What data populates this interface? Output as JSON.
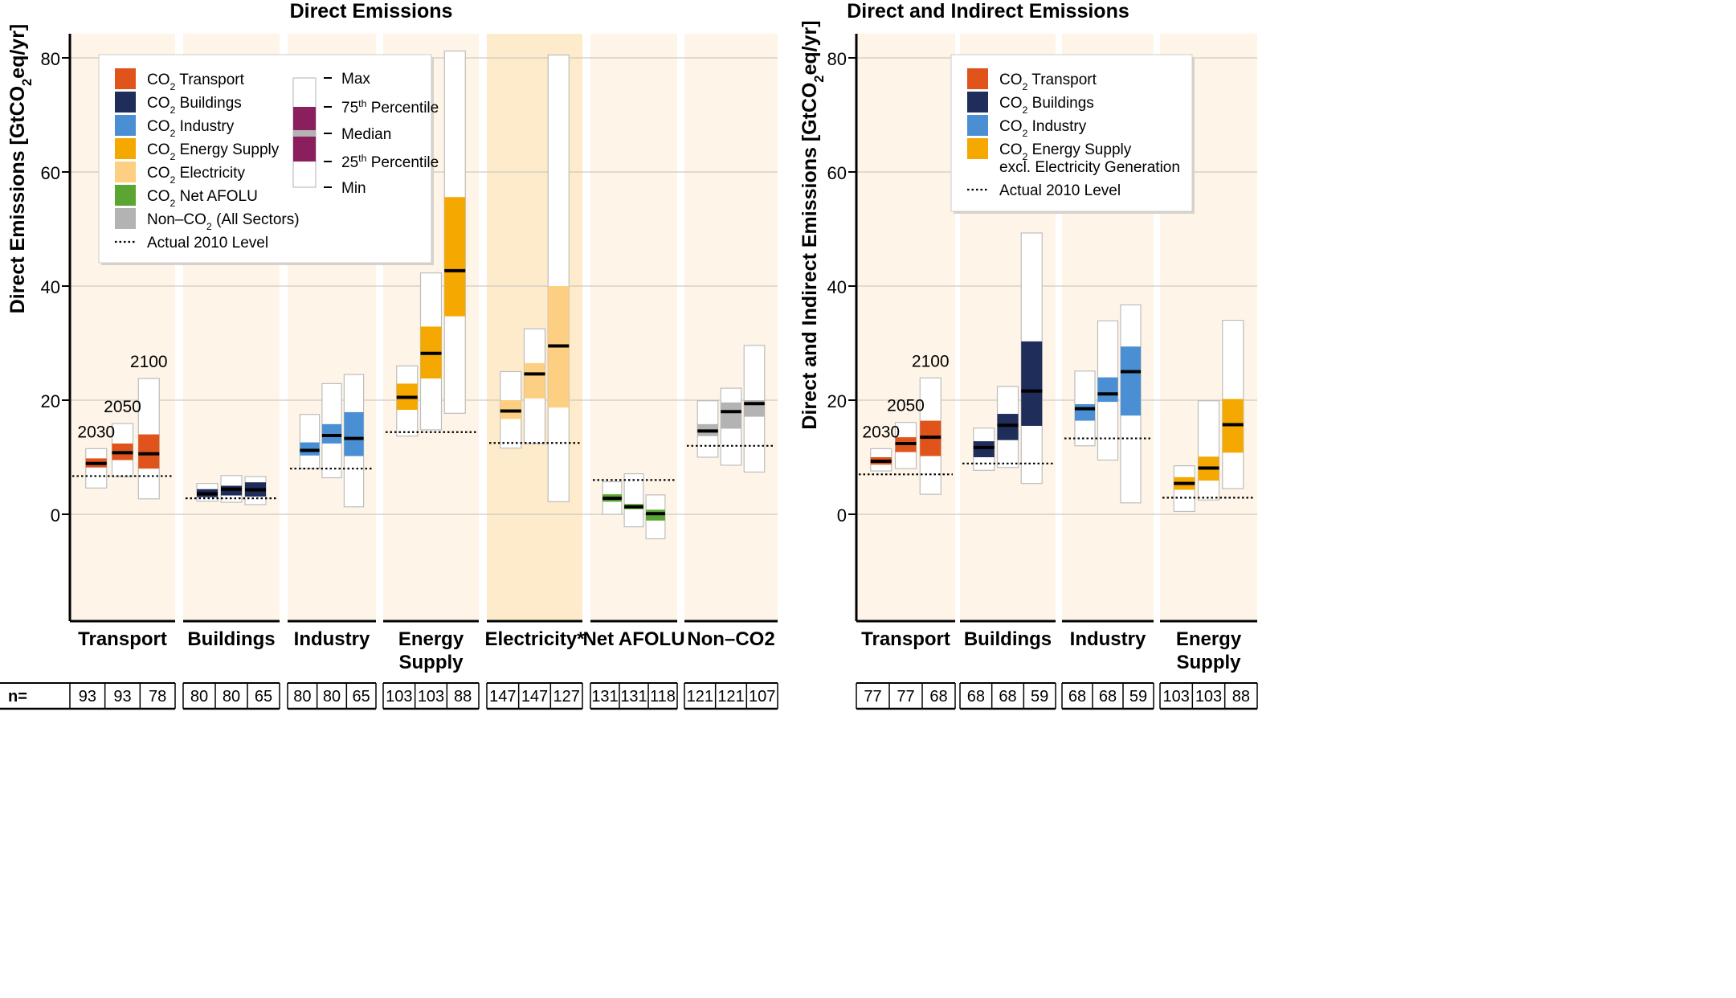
{
  "chart_data": [
    {
      "type": "box",
      "title": "Direct Emissions",
      "ylabel": "Direct Emissions [GtCO2eq/yr]",
      "ylim": [
        -18,
        85
      ],
      "yticks": [
        0,
        20,
        40,
        60,
        80
      ],
      "grid": true,
      "years": [
        "2030",
        "2050",
        "2100"
      ],
      "n_label": "n=",
      "legend": {
        "placement": "top-left",
        "items": [
          {
            "label": "CO2 Transport",
            "color": "#e0541b"
          },
          {
            "label": "CO2 Buildings",
            "color": "#1e2d5a"
          },
          {
            "label": "CO2 Industry",
            "color": "#4a8fd4"
          },
          {
            "label": "CO2 Energy Supply",
            "color": "#f5a800"
          },
          {
            "label": "CO2 Electricity",
            "color": "#fdcf82"
          },
          {
            "label": "CO2 Net AFOLU",
            "color": "#5ba632"
          },
          {
            "label": "Non–CO2 (All Sectors)",
            "color": "#b3b3b3"
          },
          {
            "label": "Actual 2010 Level",
            "style": "dotted"
          }
        ],
        "box_key": {
          "max": "Max",
          "p75": "75th Percentile",
          "median": "Median",
          "p25": "25th Percentile",
          "min": "Min",
          "color": "#8b1e5c"
        }
      },
      "groups": [
        {
          "name": "Transport",
          "color": "#e0541b",
          "actual_2010": 6.7,
          "n": [
            "93",
            "93",
            "78"
          ],
          "boxes": [
            {
              "min": 4.6,
              "p25": 8.2,
              "median": 8.9,
              "p75": 9.8,
              "max": 11.5
            },
            {
              "min": 6.6,
              "p25": 9.5,
              "median": 10.8,
              "p75": 12.4,
              "max": 15.9
            },
            {
              "min": 2.7,
              "p25": 8,
              "median": 10.6,
              "p75": 14,
              "max": 23.8
            }
          ]
        },
        {
          "name": "Buildings",
          "color": "#1e2d5a",
          "actual_2010": 2.8,
          "n": [
            "80",
            "80",
            "65"
          ],
          "boxes": [
            {
              "min": 2.3,
              "p25": 3,
              "median": 3.6,
              "p75": 4.4,
              "max": 5.4
            },
            {
              "min": 2.1,
              "p25": 3.3,
              "median": 4.4,
              "p75": 5,
              "max": 6.8
            },
            {
              "min": 1.7,
              "p25": 3.1,
              "median": 4.3,
              "p75": 5.6,
              "max": 6.6
            }
          ]
        },
        {
          "name": "Industry",
          "color": "#4a8fd4",
          "actual_2010": 8,
          "n": [
            "80",
            "80",
            "65"
          ],
          "boxes": [
            {
              "min": 8,
              "p25": 10.3,
              "median": 11.2,
              "p75": 12.6,
              "max": 17.5
            },
            {
              "min": 6.4,
              "p25": 12.4,
              "median": 13.8,
              "p75": 15.8,
              "max": 22.9
            },
            {
              "min": 1.3,
              "p25": 10.2,
              "median": 13.3,
              "p75": 17.9,
              "max": 24.5
            }
          ]
        },
        {
          "name": "Energy Supply",
          "color": "#f5a800",
          "actual_2010": 14.4,
          "n": [
            "103",
            "103",
            "88"
          ],
          "boxes": [
            {
              "min": 13.7,
              "p25": 18.3,
              "median": 20.5,
              "p75": 22.9,
              "max": 26
            },
            {
              "min": 14.8,
              "p25": 23.8,
              "median": 28.2,
              "p75": 32.9,
              "max": 42.3
            },
            {
              "min": 17.7,
              "p25": 34.7,
              "median": 42.7,
              "p75": 55.6,
              "max": 81.2
            }
          ]
        },
        {
          "name": "Electricity*",
          "color": "#fdcf82",
          "actual_2010": 12.5,
          "n": [
            "147",
            "147",
            "127"
          ],
          "highlight": true,
          "boxes": [
            {
              "min": 11.6,
              "p25": 16.7,
              "median": 18.1,
              "p75": 20,
              "max": 25
            },
            {
              "min": 12.4,
              "p25": 20.3,
              "median": 24.6,
              "p75": 26.5,
              "max": 32.5
            },
            {
              "min": 2.2,
              "p25": 18.7,
              "median": 29.5,
              "p75": 40,
              "max": 80.5
            }
          ]
        },
        {
          "name": "Net AFOLU",
          "color": "#5ba632",
          "actual_2010": 6,
          "n": [
            "131",
            "131",
            "118"
          ],
          "boxes": [
            {
              "min": 0,
              "p25": 2.2,
              "median": 2.8,
              "p75": 3.5,
              "max": 5.7
            },
            {
              "min": -2.2,
              "p25": 0.9,
              "median": 1.3,
              "p75": 1.8,
              "max": 7.1
            },
            {
              "min": -4.3,
              "p25": -1.1,
              "median": 0.1,
              "p75": 0.8,
              "max": 3.4
            }
          ]
        },
        {
          "name": "Non–CO2",
          "color": "#b3b3b3",
          "actual_2010": 12,
          "n": [
            "121",
            "121",
            "107"
          ],
          "boxes": [
            {
              "min": 10,
              "p25": 13.7,
              "median": 14.6,
              "p75": 15.8,
              "max": 19.9
            },
            {
              "min": 8.6,
              "p25": 15,
              "median": 18,
              "p75": 19.6,
              "max": 22.1
            },
            {
              "min": 7.4,
              "p25": 17.1,
              "median": 19.4,
              "p75": 20,
              "max": 29.6
            }
          ]
        }
      ]
    },
    {
      "type": "box",
      "title": "Direct and Indirect Emissions",
      "ylabel": "Direct and Indirect Emissions [GtCO2eq/yr]",
      "ylim": [
        -18,
        85
      ],
      "yticks": [
        0,
        20,
        40,
        60,
        80
      ],
      "grid": true,
      "years": [
        "2030",
        "2050",
        "2100"
      ],
      "legend": {
        "placement": "top-right",
        "items": [
          {
            "label": "CO2 Transport",
            "color": "#e0541b"
          },
          {
            "label": "CO2 Buildings",
            "color": "#1e2d5a"
          },
          {
            "label": "CO2 Industry",
            "color": "#4a8fd4"
          },
          {
            "label": "CO2 Energy Supply",
            "label2": "excl. Electricity Generation",
            "color": "#f5a800"
          },
          {
            "label": "Actual 2010 Level",
            "style": "dotted"
          }
        ]
      },
      "groups": [
        {
          "name": "Transport",
          "color": "#e0541b",
          "actual_2010": 7,
          "n": [
            "77",
            "77",
            "68"
          ],
          "boxes": [
            {
              "min": 7.6,
              "p25": 8.7,
              "median": 9.3,
              "p75": 10,
              "max": 11.5
            },
            {
              "min": 8,
              "p25": 10.9,
              "median": 12.4,
              "p75": 13.5,
              "max": 16.1
            },
            {
              "min": 3.5,
              "p25": 10.2,
              "median": 13.5,
              "p75": 16.4,
              "max": 23.9
            }
          ]
        },
        {
          "name": "Buildings",
          "color": "#1e2d5a",
          "actual_2010": 8.9,
          "n": [
            "68",
            "68",
            "59"
          ],
          "boxes": [
            {
              "min": 7.7,
              "p25": 10,
              "median": 11.7,
              "p75": 12.8,
              "max": 15.1
            },
            {
              "min": 8.2,
              "p25": 13,
              "median": 15.6,
              "p75": 17.6,
              "max": 22.4
            },
            {
              "min": 5.4,
              "p25": 15.5,
              "median": 21.6,
              "p75": 30.3,
              "max": 49.3
            }
          ]
        },
        {
          "name": "Industry",
          "color": "#4a8fd4",
          "actual_2010": 13.3,
          "n": [
            "68",
            "68",
            "59"
          ],
          "boxes": [
            {
              "min": 12,
              "p25": 16.4,
              "median": 18.5,
              "p75": 19.3,
              "max": 25.1
            },
            {
              "min": 9.5,
              "p25": 19.7,
              "median": 21.1,
              "p75": 24,
              "max": 33.9
            },
            {
              "min": 2,
              "p25": 17.3,
              "median": 25,
              "p75": 29.4,
              "max": 36.7
            }
          ]
        },
        {
          "name": "Energy Supply",
          "color": "#f5a800",
          "actual_2010": 2.9,
          "n": [
            "103",
            "103",
            "88"
          ],
          "boxes": [
            {
              "min": 0.5,
              "p25": 4.3,
              "median": 5.4,
              "p75": 6.5,
              "max": 8.5
            },
            {
              "min": 2.5,
              "p25": 5.9,
              "median": 8.1,
              "p75": 10.1,
              "max": 19.9
            },
            {
              "min": 4.5,
              "p25": 10.8,
              "median": 15.7,
              "p75": 20.2,
              "max": 34
            }
          ]
        }
      ]
    }
  ]
}
